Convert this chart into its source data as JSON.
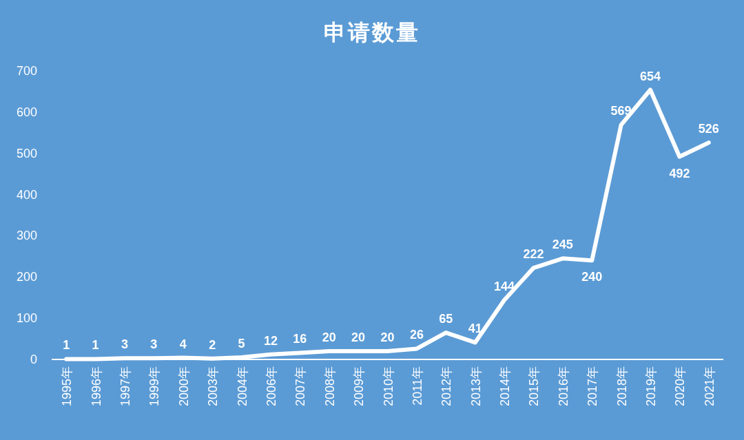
{
  "chart_data": {
    "type": "line",
    "title": "申请数量",
    "categories": [
      "1995年",
      "1996年",
      "1997年",
      "1999年",
      "2000年",
      "2003年",
      "2004年",
      "2006年",
      "2007年",
      "2008年",
      "2009年",
      "2010年",
      "2011年",
      "2012年",
      "2013年",
      "2014年",
      "2015年",
      "2016年",
      "2017年",
      "2018年",
      "2019年",
      "2020年",
      "2021年"
    ],
    "values": [
      1,
      1,
      3,
      3,
      4,
      2,
      5,
      12,
      16,
      20,
      20,
      20,
      26,
      65,
      41,
      144,
      222,
      245,
      240,
      569,
      654,
      492,
      526
    ],
    "color": "#ffffff",
    "ylim": [
      0,
      700
    ],
    "yticks": [
      0,
      100,
      200,
      300,
      400,
      500,
      600,
      700
    ],
    "data_labels": true,
    "marker": "none",
    "line_style": "solid"
  }
}
